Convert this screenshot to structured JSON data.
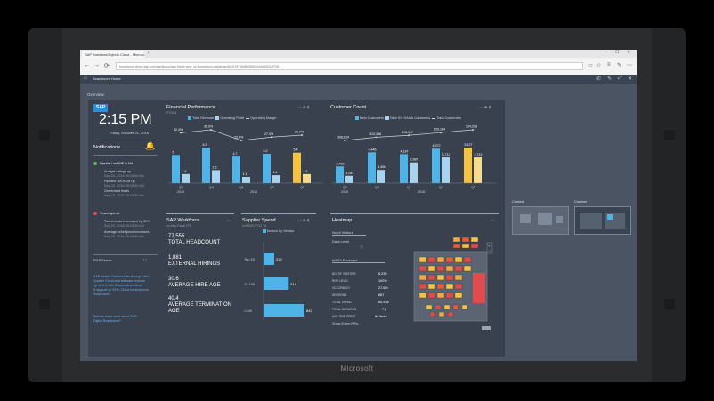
{
  "device": {
    "brand": "Microsoft"
  },
  "browser": {
    "tab_title": "SAP BusinessObjects Cloud - Microsoft Edge",
    "address": "boardroom.demo.sap.com/sap/fpa/ui/app.html#;view_id=boardroom;dashboardId=5787184BBD6E6A0AD6DA4FD8",
    "new_tab": "+",
    "back": "←",
    "forward": "→",
    "refresh": "⟳",
    "min": "—",
    "max": "☐",
    "close": "✕"
  },
  "shell": {
    "title": "Boardroom Home",
    "home_icon": "⌂"
  },
  "overview_label": "Overview",
  "left": {
    "logo": "SAP",
    "time": "2:15 PM",
    "date": "Friday, October 21, 2016",
    "notifications_title": "Notifications",
    "groups": [
      {
        "title": "Upside Lost WF in NA",
        "color": "#5cb85c",
        "items": [
          "Analyst ratings up",
          "Sep 20, 2016 09:15:50 AM",
          "Pipeline NA HCM up",
          "Sep 20, 2016 09:15:50 AM",
          "Generated leads",
          "Sep 20, 2016 09:15:50 AM"
        ]
      },
      {
        "title": "Travel spend",
        "color": "#e05252",
        "items": [
          "Travel costs increased by 30%",
          "Sep 20, 2016 09:15:50 AM",
          "Average ticket price increases",
          "Sep 20, 2016 09:15:50 AM"
        ]
      }
    ],
    "feeds_title": "RSS Feeds",
    "feeds": [
      "SAP Raises Outlook After Strong Third",
      "Quarter Cloud and software revenue",
      "up 14% in Q3; Cloud subscriptions",
      "& support up 32%; Cloud subscriptions",
      "Read more",
      "Want to learn more about SAP",
      "Digital Boardroom?"
    ]
  },
  "financial": {
    "title": "Financial Performance",
    "subtitle": "FY2016",
    "legend": [
      "Total Revenue",
      "Operating Profit",
      "Operating Margin"
    ],
    "colors": {
      "revenue": "#4fb3e8",
      "profit": "#a9d3ee",
      "highlight": "#f5c242",
      "line": "#c9d3df"
    }
  },
  "customer": {
    "title": "Customer Count",
    "legend": [
      "New Customers",
      "New S/4 HANA Customers",
      "Total Customers"
    ]
  },
  "workforce": {
    "title": "SAP Workforce",
    "subtitle": "in Units; Fiscal YTD",
    "kpis": [
      {
        "value": "77,555",
        "label": "TOTAL HEADCOUNT"
      },
      {
        "value": "1,881",
        "label": "EXTERNAL HIRINGS"
      },
      {
        "value": "30.6",
        "label": "AVERAGE HIRE AGE"
      },
      {
        "value": "40.4",
        "label": "AVERAGE TERMINATION AGE"
      }
    ]
  },
  "supplier": {
    "title": "Supplier Spend",
    "subtitle": "in mEUR; FY17 '16",
    "legend": "Invoice by Vendor"
  },
  "heatmap": {
    "title": "Heatmap",
    "filter1": "No of Visitors",
    "filter2": "Data Level",
    "filter3": "NASA Envelope",
    "rows": [
      {
        "label": "NO. OF VISITORS",
        "value": "8,239"
      },
      {
        "label": "RISK LEVEL",
        "value": "100%"
      },
      {
        "label": "OCCUPANCY",
        "value": "27.6%"
      },
      {
        "label": "SESSIONS",
        "value": "887"
      },
      {
        "label": "TOTAL SPEND",
        "value": "60,908"
      },
      {
        "label": "TOTAL DURATION",
        "value": "7.4"
      },
      {
        "label": "AVG TIME SPENT",
        "value": "8h 8min"
      },
      {
        "label": "Show Event KPIs",
        "value": ""
      }
    ]
  },
  "thumbs": [
    "Context",
    "Context"
  ],
  "chart_data": [
    {
      "type": "bar",
      "title": "Financial Performance",
      "categories": [
        "Q3 2015",
        "Q4 2015",
        "Q1 2016",
        "Q2 2016",
        "Q3 2016"
      ],
      "series": [
        {
          "name": "Total Revenue",
          "values": [
            5.0,
            6.3,
            4.7,
            5.2,
            5.4
          ]
        },
        {
          "name": "Operating Profit",
          "values": [
            1.6,
            2.3,
            1.1,
            1.4,
            1.6
          ]
        },
        {
          "name": "Operating Margin",
          "values": [
            32.4,
            36.0,
            23.4,
            27.3,
            29.7
          ]
        }
      ]
    },
    {
      "type": "bar",
      "title": "Customer Count",
      "categories": [
        "Q3 2015",
        "Q4 2015",
        "Q1 2016",
        "Q2 2016",
        "Q3 2016"
      ],
      "series": [
        {
          "name": "New Customers",
          "values": [
            2403,
            4446,
            4187,
            4972,
            5127
          ]
        },
        {
          "name": "New S/4 HANA Customers",
          "values": [
            1057,
            1896,
            2987,
            3712,
            3712
          ]
        },
        {
          "name": "Total Customers",
          "values": [
            308624,
            313386,
            316117,
            320134,
            324298
          ]
        }
      ]
    },
    {
      "type": "bar",
      "title": "Supplier Spend",
      "categories": [
        "Top 10",
        "11-100",
        ">100"
      ],
      "series": [
        {
          "name": "Invoice by Vendor",
          "values": [
            219,
            518,
            842
          ]
        }
      ]
    }
  ]
}
